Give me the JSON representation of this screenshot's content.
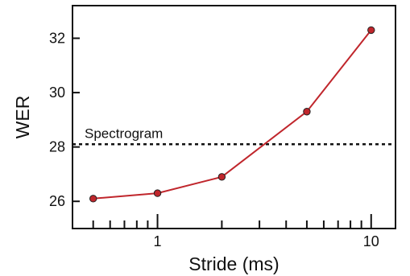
{
  "chart_data": {
    "type": "line",
    "title": "",
    "xlabel": "Stride (ms)",
    "ylabel": "WER",
    "x_scale": "log",
    "xlim": [
      0.4,
      13
    ],
    "ylim": [
      25,
      33.2
    ],
    "x_ticks": [
      1,
      10
    ],
    "x_tick_labels": [
      "1",
      "10"
    ],
    "y_ticks": [
      26,
      28,
      30,
      32
    ],
    "y_tick_labels": [
      "26",
      "28",
      "30",
      "32"
    ],
    "grid": false,
    "legend": "none",
    "series": [
      {
        "color": "#c0262c",
        "x": [
          0.5,
          1,
          2,
          5,
          10
        ],
        "y": [
          26.1,
          26.3,
          26.9,
          29.3,
          32.3
        ]
      }
    ],
    "reference_lines": [
      {
        "label": "Spectrogram",
        "y": 28.1,
        "style": "dotted",
        "color": "#111111"
      }
    ]
  }
}
